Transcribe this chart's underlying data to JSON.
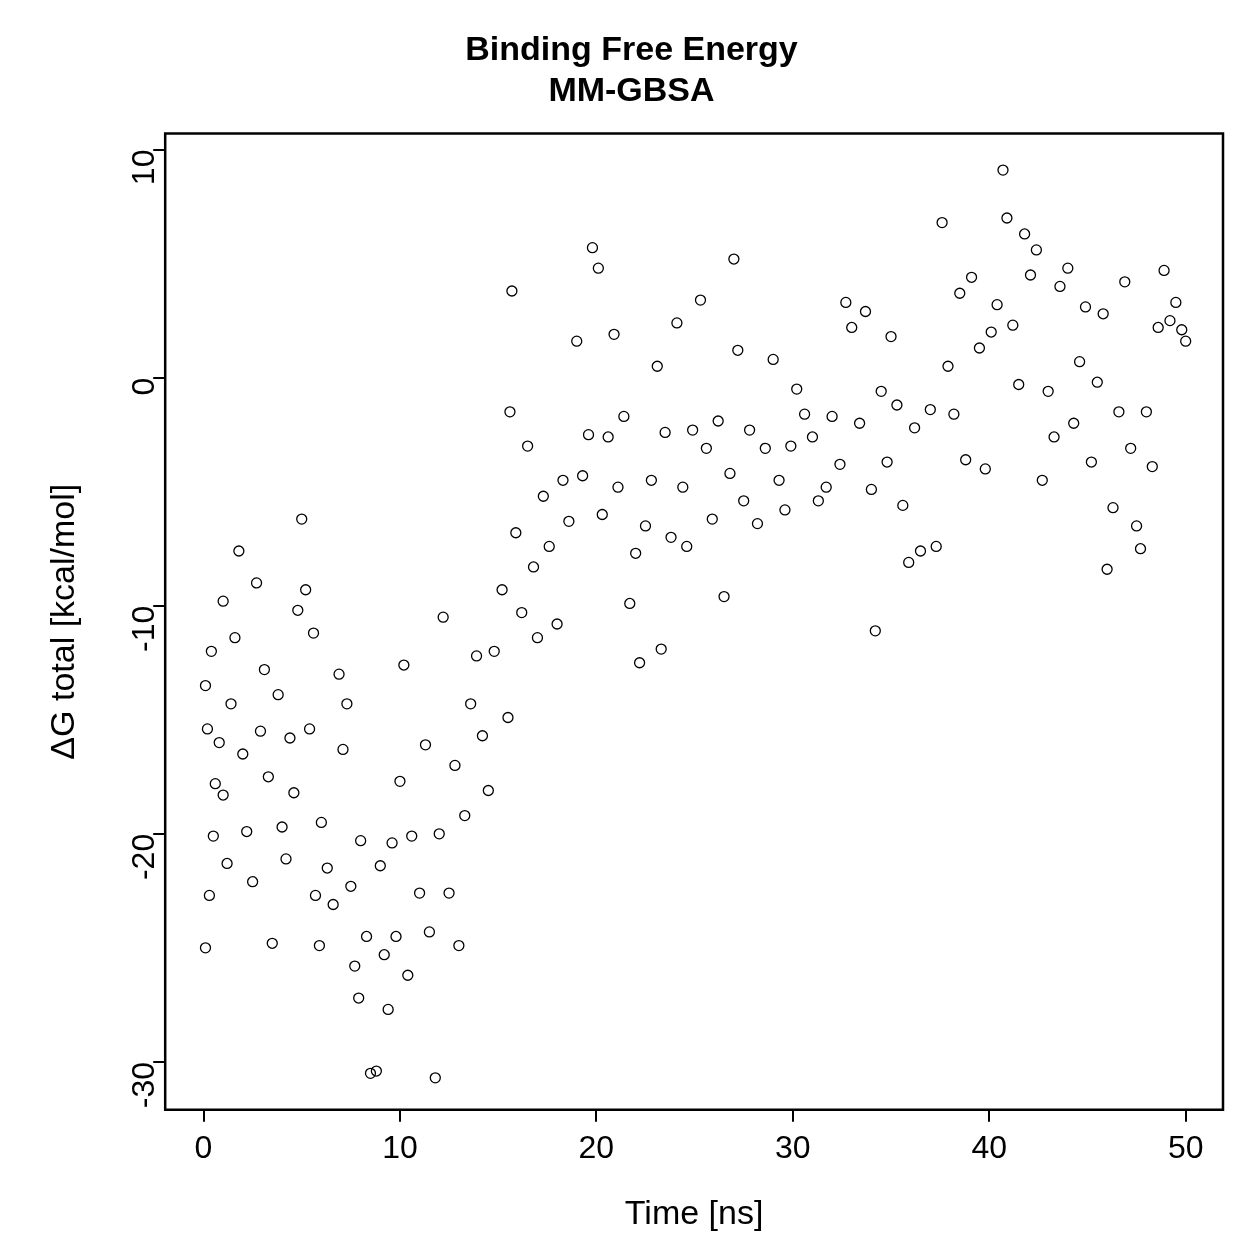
{
  "chart_data": {
    "type": "scatter",
    "title": "Binding Free Energy",
    "subtitle": "MM-GBSA",
    "xlabel": "Time [ns]",
    "ylabel": "ΔG total [kcal/mol]",
    "xlim": [
      -1.95,
      51.9
    ],
    "ylim": [
      -32.1,
      10.7
    ],
    "xticks": [
      0,
      10,
      20,
      30,
      40,
      50
    ],
    "yticks": [
      -30,
      -20,
      -10,
      0,
      10
    ],
    "grid": false,
    "legend": false,
    "marker": "circle",
    "series": [
      {
        "color": "#000000",
        "x": [
          0.1,
          0.1,
          0.2,
          0.3,
          0.4,
          0.5,
          0.6,
          0.8,
          1,
          1,
          1.2,
          1.4,
          1.6,
          1.8,
          2,
          2.2,
          2.5,
          2.7,
          2.9,
          3.1,
          3.3,
          3.5,
          3.8,
          4,
          4.2,
          4.4,
          4.6,
          4.8,
          5,
          5.2,
          5.4,
          5.6,
          5.7,
          5.9,
          6,
          6.3,
          6.6,
          6.9,
          7.1,
          7.3,
          7.5,
          7.7,
          7.9,
          8,
          8.3,
          8.5,
          8.8,
          9,
          9.2,
          9.4,
          9.6,
          9.8,
          10,
          10.2,
          10.4,
          10.6,
          11,
          11.3,
          11.5,
          11.8,
          12,
          12.2,
          12.5,
          12.8,
          13,
          13.3,
          13.6,
          13.9,
          14.2,
          14.5,
          14.8,
          15.2,
          15.5,
          15.7,
          15.6,
          15.9,
          16.2,
          16.5,
          16.8,
          17,
          17.3,
          17.6,
          18,
          18.3,
          18.6,
          19,
          19.3,
          19.6,
          19.8,
          20.1,
          20.3,
          20.6,
          20.9,
          21.1,
          21.4,
          21.7,
          22,
          22.2,
          22.5,
          22.8,
          23.1,
          23.3,
          23.5,
          23.8,
          24.1,
          24.4,
          24.6,
          24.9,
          25.3,
          25.6,
          25.9,
          26.2,
          26.5,
          26.8,
          27,
          27.2,
          27.5,
          27.8,
          28.2,
          28.6,
          29,
          29.3,
          29.6,
          29.9,
          30.2,
          30.6,
          31,
          31.3,
          31.7,
          32,
          32.4,
          32.7,
          33,
          33.4,
          33.7,
          34,
          34.2,
          34.5,
          34.8,
          35,
          35.3,
          35.6,
          35.9,
          36.2,
          36.5,
          37,
          37.3,
          37.6,
          37.9,
          38.2,
          38.5,
          38.8,
          39.1,
          39.5,
          39.8,
          40.1,
          40.4,
          40.7,
          40.9,
          41.2,
          41.5,
          41.8,
          42.1,
          42.4,
          42.7,
          43,
          43.3,
          43.6,
          44,
          44.3,
          44.6,
          44.9,
          45.2,
          45.5,
          45.8,
          46,
          46.3,
          46.6,
          46.9,
          47.2,
          47.5,
          47.7,
          48,
          48.3,
          48.6,
          48.9,
          49.2,
          49.5,
          49.8,
          50
        ],
        "values": [
          -25,
          -13.5,
          -15.4,
          -22.7,
          -12,
          -20.1,
          -17.8,
          -16,
          -9.8,
          -18.3,
          -21.3,
          -14.3,
          -11.4,
          -7.6,
          -16.5,
          -19.9,
          -22.1,
          -9,
          -15.5,
          -12.8,
          -17.5,
          -24.8,
          -13.9,
          -19.7,
          -21.1,
          -15.8,
          -18.2,
          -10.2,
          -6.2,
          -9.3,
          -15.4,
          -11.2,
          -22.7,
          -24.9,
          -19.5,
          -21.5,
          -23.1,
          -13,
          -16.3,
          -14.3,
          -22.3,
          -25.8,
          -27.2,
          -20.3,
          -24.5,
          -30.5,
          -30.4,
          -21.4,
          -25.3,
          -27.7,
          -20.4,
          -24.5,
          -17.7,
          -12.6,
          -26.2,
          -20.1,
          -22.6,
          -16.1,
          -24.3,
          -30.7,
          -20,
          -10.5,
          -22.6,
          -17,
          -24.9,
          -19.2,
          -14.3,
          -12.2,
          -15.7,
          -18.1,
          -12,
          -9.3,
          -14.9,
          3.8,
          -1.5,
          -6.8,
          -10.3,
          -3,
          -8.3,
          -11.4,
          -5.2,
          -7.4,
          -10.8,
          -4.5,
          -6.3,
          1.6,
          -4.3,
          -2.5,
          5.7,
          4.8,
          -6,
          -2.6,
          1.9,
          -4.8,
          -1.7,
          -9.9,
          -7.7,
          -12.5,
          -6.5,
          -4.5,
          0.5,
          -11.9,
          -2.4,
          -7,
          2.4,
          -4.8,
          -7.4,
          -2.3,
          3.4,
          -3.1,
          -6.2,
          -1.9,
          -9.6,
          -4.2,
          5.2,
          1.2,
          -5.4,
          -2.3,
          -6.4,
          -3.1,
          0.8,
          -4.5,
          -5.8,
          -3,
          -0.5,
          -1.6,
          -2.6,
          -5.4,
          -4.8,
          -1.7,
          -3.8,
          3.3,
          2.2,
          -2,
          2.9,
          -4.9,
          -11.1,
          -0.6,
          -3.7,
          1.8,
          -1.2,
          -5.6,
          -8.1,
          -2.2,
          -7.6,
          -1.4,
          -7.4,
          6.8,
          0.5,
          -1.6,
          3.7,
          -3.6,
          4.4,
          1.3,
          -4,
          2,
          3.2,
          9.1,
          7,
          2.3,
          -0.3,
          6.3,
          4.5,
          5.6,
          -4.5,
          -0.6,
          -2.6,
          4,
          4.8,
          -2,
          0.7,
          3.1,
          -3.7,
          -0.2,
          2.8,
          -8.4,
          -5.7,
          -1.5,
          4.2,
          -3.1,
          -6.5,
          -7.5,
          -1.5,
          -3.9,
          2.2,
          4.7,
          2.5,
          3.3,
          2.1,
          1.6
        ]
      }
    ]
  }
}
